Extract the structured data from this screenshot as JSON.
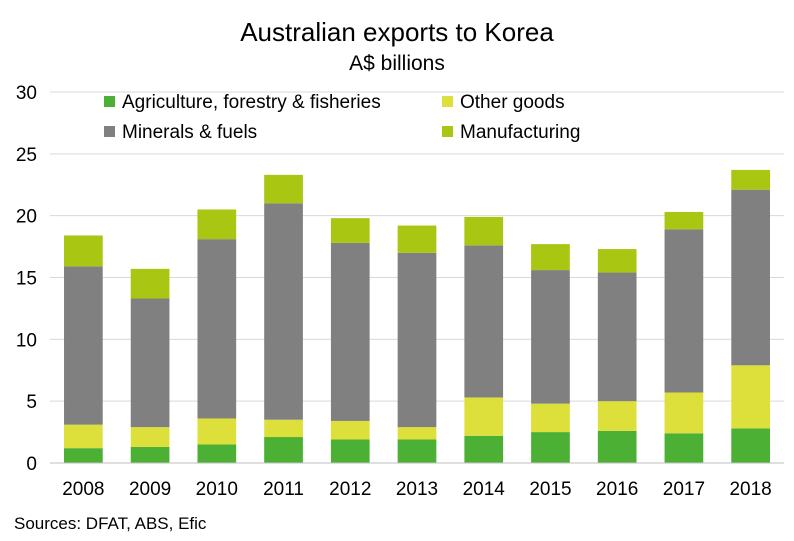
{
  "chart_data": {
    "type": "bar",
    "stacked": true,
    "title": "Australian exports to Korea",
    "subtitle": "A$ billions",
    "categories": [
      "2008",
      "2009",
      "2010",
      "2011",
      "2012",
      "2013",
      "2014",
      "2015",
      "2016",
      "2017",
      "2018"
    ],
    "series": [
      {
        "name": "Agriculture, forestry & fisheries",
        "color": "#4cb035",
        "values": [
          1.2,
          1.3,
          1.5,
          2.1,
          1.9,
          1.9,
          2.2,
          2.5,
          2.6,
          2.4,
          2.8
        ]
      },
      {
        "name": "Other goods",
        "color": "#dde03a",
        "values": [
          1.9,
          1.6,
          2.1,
          1.4,
          1.5,
          1.0,
          3.1,
          2.3,
          2.4,
          3.3,
          5.1
        ]
      },
      {
        "name": "Minerals & fuels",
        "color": "#808080",
        "values": [
          12.8,
          10.4,
          14.5,
          17.5,
          14.4,
          14.1,
          12.3,
          10.8,
          10.4,
          13.2,
          14.2
        ]
      },
      {
        "name": "Manufacturing",
        "color": "#a8c612",
        "values": [
          2.5,
          2.4,
          2.4,
          2.3,
          2.0,
          2.2,
          2.3,
          2.1,
          1.9,
          1.4,
          1.6
        ]
      }
    ],
    "yticks": [
      "0",
      "5",
      "10",
      "15",
      "20",
      "25",
      "30"
    ],
    "ylim": [
      0,
      30
    ],
    "grid": true,
    "legend": "top-left, inside plot",
    "source": "Sources: DFAT, ABS, Efic"
  }
}
